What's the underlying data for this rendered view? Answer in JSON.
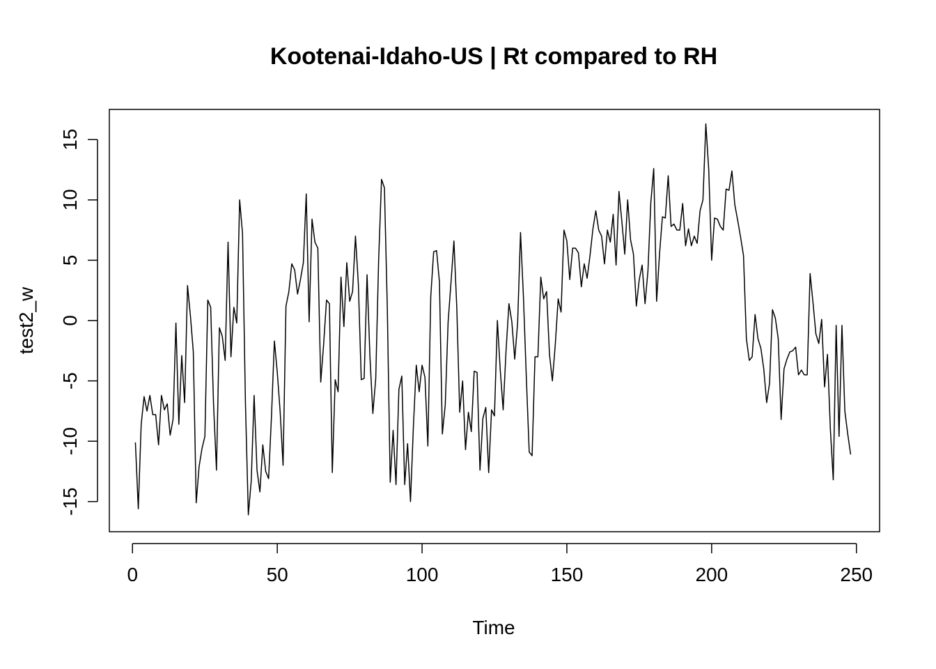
{
  "chart_data": {
    "type": "line",
    "title": "Kootenai-Idaho-US | Rt compared to RH",
    "xlabel": "Time",
    "ylabel": "test2_w",
    "xlim": [
      -8,
      258
    ],
    "ylim": [
      -17.5,
      17.5
    ],
    "x_ticks": [
      0,
      50,
      100,
      150,
      200,
      250
    ],
    "y_ticks": [
      -15,
      -10,
      -5,
      0,
      5,
      10,
      15
    ],
    "grid": false,
    "legend": "none",
    "series": [
      {
        "color": "#000000",
        "x": [
          1,
          2,
          3,
          4,
          5,
          6,
          7,
          8,
          9,
          10,
          11,
          12,
          13,
          14,
          15,
          16,
          17,
          18,
          19,
          20,
          21,
          22,
          23,
          24,
          25,
          26,
          27,
          28,
          29,
          30,
          31,
          32,
          33,
          34,
          35,
          36,
          37,
          38,
          39,
          40,
          41,
          42,
          43,
          44,
          45,
          46,
          47,
          48,
          49,
          50,
          51,
          52,
          53,
          54,
          55,
          56,
          57,
          58,
          59,
          60,
          61,
          62,
          63,
          64,
          65,
          66,
          67,
          68,
          69,
          70,
          71,
          72,
          73,
          74,
          75,
          76,
          77,
          78,
          79,
          80,
          81,
          82,
          83,
          84,
          85,
          86,
          87,
          88,
          89,
          90,
          91,
          92,
          93,
          94,
          95,
          96,
          97,
          98,
          99,
          100,
          101,
          102,
          103,
          104,
          105,
          106,
          107,
          108,
          109,
          110,
          111,
          112,
          113,
          114,
          115,
          116,
          117,
          118,
          119,
          120,
          121,
          122,
          123,
          124,
          125,
          126,
          127,
          128,
          129,
          130,
          131,
          132,
          133,
          134,
          135,
          136,
          137,
          138,
          139,
          140,
          141,
          142,
          143,
          144,
          145,
          146,
          147,
          148,
          149,
          150,
          151,
          152,
          153,
          154,
          155,
          156,
          157,
          158,
          159,
          160,
          161,
          162,
          163,
          164,
          165,
          166,
          167,
          168,
          169,
          170,
          171,
          172,
          173,
          174,
          175,
          176,
          177,
          178,
          179,
          180,
          181,
          182,
          183,
          184,
          185,
          186,
          187,
          188,
          189,
          190,
          191,
          192,
          193,
          194,
          195,
          196,
          197,
          198,
          199,
          200,
          201,
          202,
          203,
          204,
          205,
          206,
          207,
          208,
          209,
          210,
          211,
          212,
          213,
          214,
          215,
          216,
          217,
          218,
          219,
          220,
          221,
          222,
          223,
          224,
          225,
          226,
          227,
          228,
          229,
          230,
          231,
          232,
          233,
          234,
          235,
          236,
          237,
          238,
          239,
          240,
          241,
          242,
          243,
          244,
          245,
          246,
          247,
          248
        ],
        "values": [
          -10.1,
          -15.6,
          -8.6,
          -6.3,
          -7.5,
          -6.2,
          -7.8,
          -7.8,
          -10.3,
          -6.2,
          -7.4,
          -6.9,
          -9.5,
          -8.2,
          -0.2,
          -8.6,
          -2.9,
          -6.8,
          2.9,
          0.4,
          -2.6,
          -15.1,
          -12.1,
          -10.6,
          -9.6,
          1.7,
          1.1,
          -7.0,
          -12.4,
          -0.6,
          -1.3,
          -3.3,
          6.5,
          -3.0,
          1.1,
          -0.2,
          10.0,
          7.2,
          -6.8,
          -16.1,
          -13.3,
          -6.2,
          -12.4,
          -14.2,
          -10.3,
          -12.5,
          -13.1,
          -7.9,
          -1.7,
          -4.3,
          -7.6,
          -12.0,
          1.2,
          2.4,
          4.7,
          4.2,
          2.2,
          3.4,
          4.8,
          10.5,
          -0.1,
          8.4,
          6.5,
          6.0,
          -5.1,
          -2.0,
          1.7,
          1.4,
          -12.6,
          -4.9,
          -5.9,
          3.6,
          -0.5,
          4.8,
          1.6,
          2.4,
          7.0,
          3.0,
          -4.9,
          -4.8,
          3.8,
          -3.0,
          -7.7,
          -4.8,
          5.0,
          11.7,
          11.0,
          1.0,
          -13.4,
          -9.1,
          -13.6,
          -5.7,
          -4.6,
          -13.6,
          -10.2,
          -15.0,
          -8.8,
          -3.7,
          -5.9,
          -3.7,
          -4.7,
          -10.4,
          2.0,
          5.7,
          5.8,
          3.2,
          -9.4,
          -7.0,
          -0.1,
          3.2,
          6.6,
          1.0,
          -7.6,
          -5.0,
          -10.7,
          -7.6,
          -9.2,
          -4.2,
          -4.3,
          -12.4,
          -8.1,
          -7.2,
          -12.6,
          -7.4,
          -7.9,
          0.0,
          -4.1,
          -7.4,
          -2.5,
          1.4,
          -0.1,
          -3.2,
          -0.2,
          7.3,
          2.0,
          -4.7,
          -10.9,
          -11.2,
          -3.0,
          -3.0,
          3.6,
          1.8,
          2.4,
          -2.8,
          -5.0,
          -2.0,
          1.8,
          0.7,
          7.5,
          6.6,
          3.4,
          6.0,
          6.0,
          5.6,
          2.8,
          4.7,
          3.5,
          5.4,
          7.6,
          9.1,
          7.5,
          7.0,
          4.7,
          7.5,
          6.5,
          8.8,
          4.6,
          10.7,
          8.2,
          5.5,
          10.0,
          6.7,
          5.5,
          1.2,
          3.4,
          4.6,
          1.4,
          4.1,
          9.8,
          12.6,
          1.6,
          5.5,
          8.6,
          8.5,
          12.0,
          7.8,
          8.0,
          7.5,
          7.5,
          9.7,
          6.2,
          7.6,
          6.2,
          7.0,
          6.4,
          9.1,
          10.0,
          16.3,
          12.5,
          5.0,
          8.5,
          8.4,
          7.8,
          7.5,
          10.9,
          10.8,
          12.4,
          9.6,
          8.3,
          6.9,
          5.4,
          -1.5,
          -3.3,
          -3.0,
          0.5,
          -1.5,
          -2.3,
          -4.0,
          -6.8,
          -5.2,
          0.9,
          0.2,
          -1.5,
          -8.2,
          -4.0,
          -3.2,
          -2.6,
          -2.5,
          -2.2,
          -4.5,
          -4.1,
          -4.5,
          -4.5,
          3.9,
          1.5,
          -1.1,
          -1.9,
          0.1,
          -5.5,
          -2.8,
          -9.0,
          -13.2,
          -0.4,
          -9.6,
          -0.4,
          -7.5,
          -9.4,
          -11.1
        ]
      }
    ]
  }
}
